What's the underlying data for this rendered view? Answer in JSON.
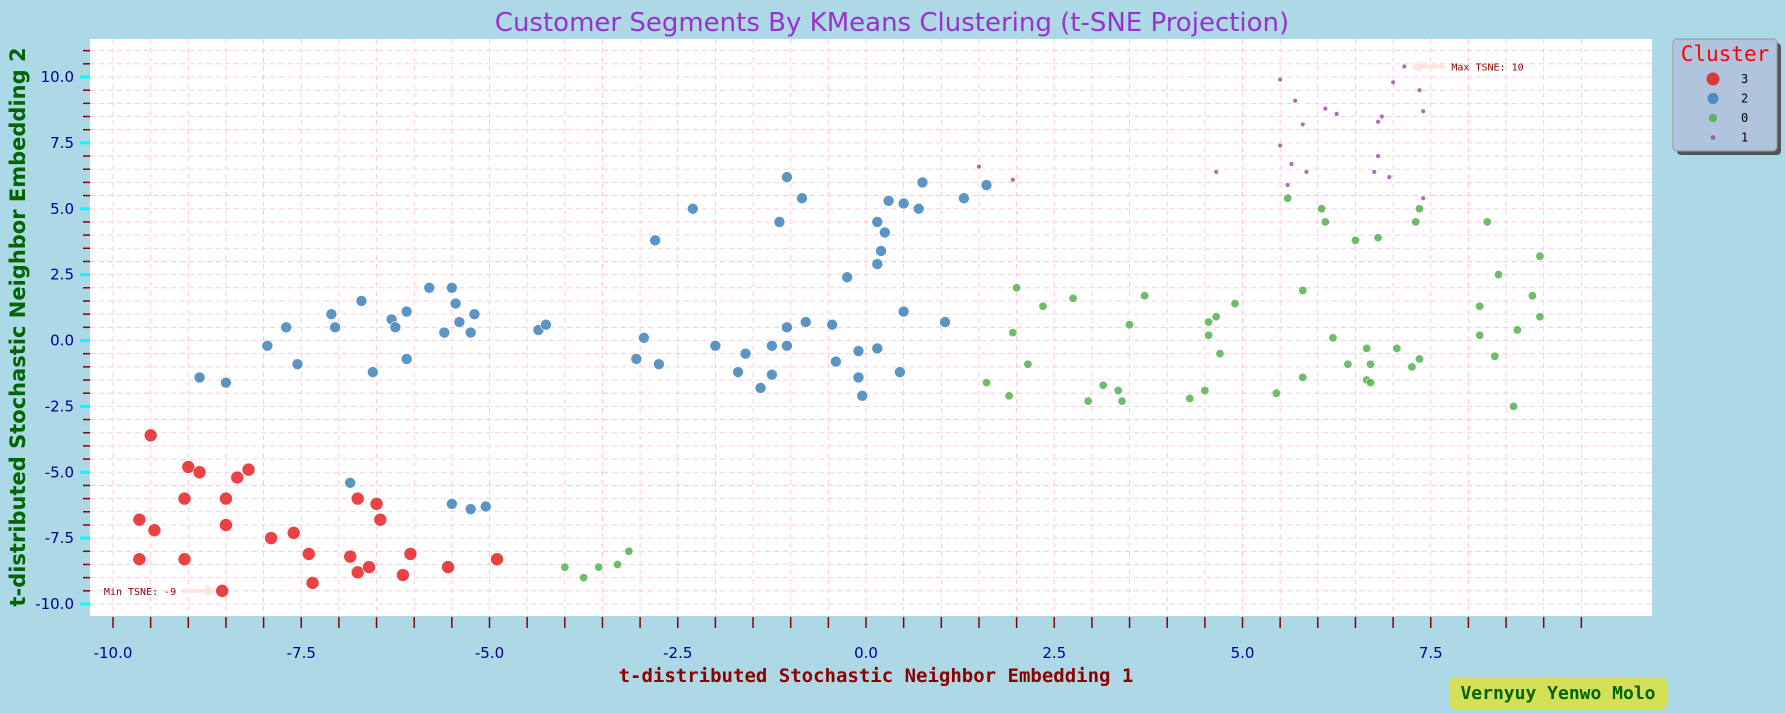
{
  "chart_data": {
    "type": "scatter",
    "title": "Customer Segments By KMeans Clustering (t-SNE Projection)",
    "xlabel": "t-distributed Stochastic Neighbor Embedding 1",
    "ylabel": "t-distributed Stochastic Neighbor Embedding 2",
    "xlim": [
      -10.5,
      9.8
    ],
    "ylim": [
      -10.4,
      11.3
    ],
    "xticks": [
      -10.0,
      -7.5,
      -5.0,
      -2.5,
      0.0,
      2.5,
      5.0,
      7.5
    ],
    "xtick_labels": [
      "-10.0",
      "-7.5",
      "-5.0",
      "-2.5",
      "0.0",
      "2.5",
      "5.0",
      "7.5"
    ],
    "yticks": [
      -10.0,
      -7.5,
      -5.0,
      -2.5,
      0.0,
      2.5,
      5.0,
      7.5,
      10.0
    ],
    "ytick_labels": [
      "-10.0",
      "-7.5",
      "-5.0",
      "-2.5",
      "0.0",
      "2.5",
      "5.0",
      "7.5",
      "10.0"
    ],
    "grid": true,
    "legend": {
      "title": "Cluster",
      "placement": "top-right outside"
    },
    "series": [
      {
        "name": "3",
        "color": "#e41a1c",
        "marker_size": "large",
        "points": [
          [
            -9.5,
            -3.6
          ],
          [
            -9.0,
            -4.8
          ],
          [
            -8.85,
            -5.0
          ],
          [
            -8.2,
            -4.9
          ],
          [
            -8.35,
            -5.2
          ],
          [
            -9.65,
            -6.8
          ],
          [
            -9.45,
            -7.2
          ],
          [
            -9.05,
            -6.0
          ],
          [
            -8.5,
            -6.0
          ],
          [
            -8.5,
            -7.0
          ],
          [
            -9.65,
            -8.3
          ],
          [
            -9.05,
            -8.3
          ],
          [
            -7.9,
            -7.5
          ],
          [
            -7.6,
            -7.3
          ],
          [
            -7.4,
            -8.1
          ],
          [
            -7.35,
            -9.2
          ],
          [
            -8.55,
            -9.5
          ],
          [
            -6.85,
            -8.2
          ],
          [
            -6.75,
            -8.8
          ],
          [
            -6.6,
            -8.6
          ],
          [
            -6.75,
            -6.0
          ],
          [
            -6.5,
            -6.2
          ],
          [
            -6.45,
            -6.8
          ],
          [
            -6.05,
            -8.1
          ],
          [
            -6.15,
            -8.9
          ],
          [
            -5.55,
            -8.6
          ],
          [
            -4.9,
            -8.3
          ]
        ]
      },
      {
        "name": "2",
        "color": "#377eb8",
        "marker_size": "medium",
        "points": [
          [
            -8.85,
            -1.4
          ],
          [
            -8.5,
            -1.6
          ],
          [
            -7.95,
            -0.2
          ],
          [
            -7.7,
            0.5
          ],
          [
            -7.55,
            -0.9
          ],
          [
            -7.1,
            1.0
          ],
          [
            -7.05,
            0.5
          ],
          [
            -6.7,
            1.5
          ],
          [
            -6.55,
            -1.2
          ],
          [
            -6.3,
            0.8
          ],
          [
            -6.25,
            0.5
          ],
          [
            -6.1,
            1.1
          ],
          [
            -6.1,
            -0.7
          ],
          [
            -5.8,
            2.0
          ],
          [
            -5.6,
            0.3
          ],
          [
            -5.5,
            2.0
          ],
          [
            -5.45,
            1.4
          ],
          [
            -5.4,
            0.7
          ],
          [
            -5.25,
            0.3
          ],
          [
            -5.2,
            1.0
          ],
          [
            -4.35,
            0.4
          ],
          [
            -4.25,
            0.6
          ],
          [
            -6.85,
            -5.4
          ],
          [
            -5.5,
            -6.2
          ],
          [
            -5.25,
            -6.4
          ],
          [
            -5.05,
            -6.3
          ],
          [
            -3.05,
            -0.7
          ],
          [
            -2.95,
            0.1
          ],
          [
            -2.75,
            -0.9
          ],
          [
            -2.8,
            3.8
          ],
          [
            -2.3,
            5.0
          ],
          [
            -2.0,
            -0.2
          ],
          [
            -1.7,
            -1.2
          ],
          [
            -1.6,
            -0.5
          ],
          [
            -1.4,
            -1.8
          ],
          [
            -1.25,
            -0.2
          ],
          [
            -1.25,
            -1.3
          ],
          [
            -1.15,
            4.5
          ],
          [
            -1.05,
            0.5
          ],
          [
            -1.05,
            -0.2
          ],
          [
            -1.05,
            6.2
          ],
          [
            -0.85,
            5.4
          ],
          [
            -0.8,
            0.7
          ],
          [
            -0.45,
            0.6
          ],
          [
            -0.4,
            -0.8
          ],
          [
            -0.25,
            2.4
          ],
          [
            -0.1,
            -0.4
          ],
          [
            -0.1,
            -1.4
          ],
          [
            -0.05,
            -2.1
          ],
          [
            0.15,
            -0.3
          ],
          [
            0.15,
            2.9
          ],
          [
            0.2,
            3.4
          ],
          [
            0.25,
            4.1
          ],
          [
            0.15,
            4.5
          ],
          [
            0.3,
            5.3
          ],
          [
            0.45,
            -1.2
          ],
          [
            0.5,
            5.2
          ],
          [
            0.5,
            1.1
          ],
          [
            0.7,
            5.0
          ],
          [
            0.75,
            6.0
          ],
          [
            1.05,
            0.7
          ],
          [
            1.3,
            5.4
          ],
          [
            1.6,
            5.9
          ]
        ]
      },
      {
        "name": "0",
        "color": "#4daf4a",
        "marker_size": "small",
        "points": [
          [
            -4.0,
            -8.6
          ],
          [
            -3.75,
            -9.0
          ],
          [
            -3.55,
            -8.6
          ],
          [
            -3.3,
            -8.5
          ],
          [
            -3.15,
            -8.0
          ],
          [
            1.6,
            -1.6
          ],
          [
            1.9,
            -2.1
          ],
          [
            1.95,
            0.3
          ],
          [
            2.0,
            2.0
          ],
          [
            2.15,
            -0.9
          ],
          [
            2.35,
            1.3
          ],
          [
            2.75,
            1.6
          ],
          [
            2.95,
            -2.3
          ],
          [
            3.15,
            -1.7
          ],
          [
            3.35,
            -1.9
          ],
          [
            3.4,
            -2.3
          ],
          [
            3.5,
            0.6
          ],
          [
            3.7,
            1.7
          ],
          [
            4.3,
            -2.2
          ],
          [
            4.5,
            -1.9
          ],
          [
            4.55,
            0.7
          ],
          [
            4.55,
            0.2
          ],
          [
            4.65,
            0.9
          ],
          [
            4.7,
            -0.5
          ],
          [
            4.9,
            1.4
          ],
          [
            5.45,
            -2.0
          ],
          [
            5.6,
            5.4
          ],
          [
            5.8,
            -1.4
          ],
          [
            5.8,
            1.9
          ],
          [
            6.05,
            5.0
          ],
          [
            6.1,
            4.5
          ],
          [
            6.2,
            0.1
          ],
          [
            6.4,
            -0.9
          ],
          [
            6.5,
            3.8
          ],
          [
            6.65,
            -0.3
          ],
          [
            6.7,
            -0.9
          ],
          [
            6.65,
            -1.5
          ],
          [
            6.7,
            -1.6
          ],
          [
            6.8,
            3.9
          ],
          [
            7.05,
            -0.3
          ],
          [
            7.25,
            -1.0
          ],
          [
            7.3,
            4.5
          ],
          [
            7.35,
            -0.7
          ],
          [
            7.35,
            5.0
          ],
          [
            8.15,
            1.3
          ],
          [
            8.15,
            0.2
          ],
          [
            8.25,
            4.5
          ],
          [
            8.35,
            -0.6
          ],
          [
            8.4,
            2.5
          ],
          [
            8.6,
            -2.5
          ],
          [
            8.65,
            0.4
          ],
          [
            8.85,
            1.7
          ],
          [
            8.95,
            3.2
          ],
          [
            8.95,
            0.9
          ]
        ]
      },
      {
        "name": "1",
        "color": "#984ea3",
        "marker_size": "tiny",
        "points": [
          [
            1.5,
            6.6
          ],
          [
            1.95,
            6.1
          ],
          [
            4.65,
            6.4
          ],
          [
            5.5,
            9.9
          ],
          [
            5.5,
            7.4
          ],
          [
            5.6,
            5.9
          ],
          [
            5.65,
            6.7
          ],
          [
            5.7,
            9.1
          ],
          [
            5.8,
            8.2
          ],
          [
            5.85,
            6.4
          ],
          [
            6.1,
            8.8
          ],
          [
            6.25,
            8.6
          ],
          [
            6.75,
            6.4
          ],
          [
            6.8,
            7.0
          ],
          [
            6.8,
            8.3
          ],
          [
            6.85,
            8.5
          ],
          [
            6.95,
            6.2
          ],
          [
            7.0,
            9.8
          ],
          [
            7.15,
            10.4
          ],
          [
            7.35,
            9.5
          ],
          [
            7.4,
            8.7
          ],
          [
            7.4,
            5.4
          ]
        ]
      }
    ],
    "annotations": [
      {
        "text": "Max TSNE: 10",
        "x": 7.15,
        "y": 10.4
      },
      {
        "text": "Min TSNE: -9",
        "x": -8.55,
        "y": -9.5
      }
    ]
  },
  "credit": "Vernyuy Yenwo Molo"
}
